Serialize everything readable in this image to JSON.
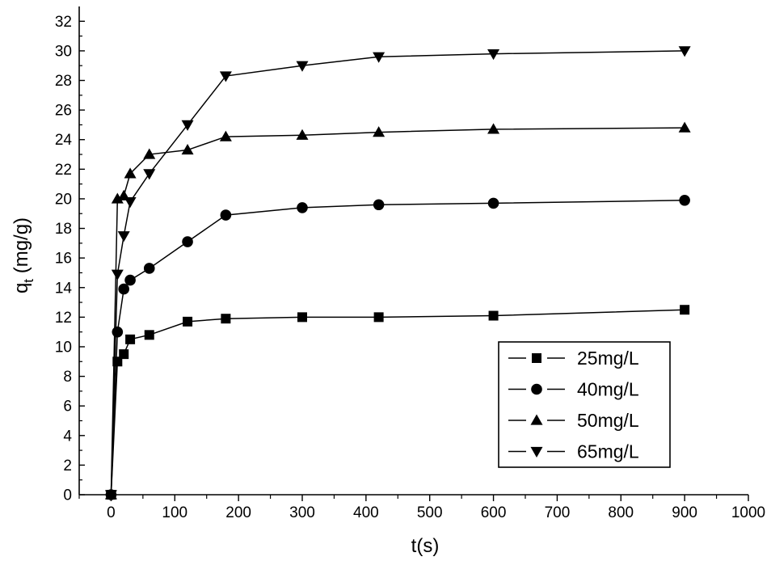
{
  "chart_data": {
    "type": "line",
    "title": "",
    "xlabel": "t(s)",
    "ylabel_main": "q",
    "ylabel_sub": "t",
    "ylabel_unit": " (mg/g)",
    "xlim": [
      -50,
      1000
    ],
    "ylim": [
      0,
      33
    ],
    "x_ticks": [
      0,
      100,
      200,
      300,
      400,
      500,
      600,
      700,
      800,
      900,
      1000
    ],
    "y_ticks": [
      0,
      2,
      4,
      6,
      8,
      10,
      12,
      14,
      16,
      18,
      20,
      22,
      24,
      26,
      28,
      30,
      32
    ],
    "grid": false,
    "legend_position": "bottom-right",
    "x": [
      0,
      10,
      20,
      30,
      60,
      120,
      180,
      300,
      420,
      600,
      900
    ],
    "series": [
      {
        "name": "25mg/L",
        "marker": "square",
        "values": [
          0,
          9.0,
          9.5,
          10.5,
          10.8,
          11.7,
          11.9,
          12.0,
          12.0,
          12.1,
          12.5
        ]
      },
      {
        "name": "40mg/L",
        "marker": "circle",
        "values": [
          0,
          11.0,
          13.9,
          14.5,
          15.3,
          17.1,
          18.9,
          19.4,
          19.6,
          19.7,
          19.9
        ]
      },
      {
        "name": "50mg/L",
        "marker": "triangle-up",
        "values": [
          0,
          20.0,
          20.2,
          21.7,
          23.0,
          23.3,
          24.2,
          24.3,
          24.5,
          24.7,
          24.8
        ]
      },
      {
        "name": "65mg/L",
        "marker": "triangle-down",
        "values": [
          0,
          14.9,
          17.5,
          19.8,
          21.7,
          25.0,
          28.3,
          29.0,
          29.6,
          29.8,
          30.0
        ]
      }
    ]
  }
}
